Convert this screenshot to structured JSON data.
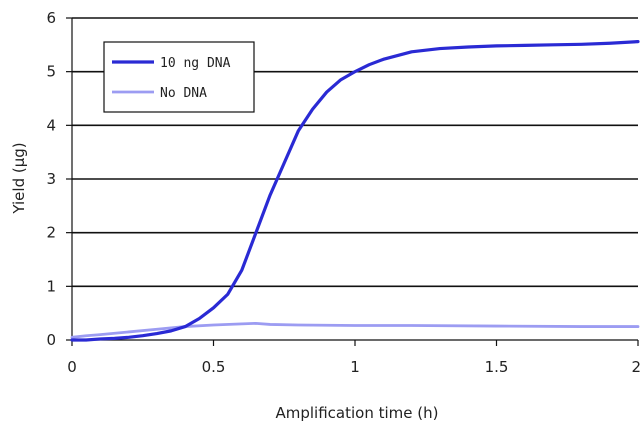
{
  "chart_data": {
    "type": "line",
    "title": "",
    "xlabel": "Amplification time (h)",
    "ylabel": "Yield (µg)",
    "xlim": [
      0,
      2
    ],
    "ylim": [
      0,
      6
    ],
    "x_ticks": [
      "0",
      "0.5",
      "1",
      "1.5",
      "2"
    ],
    "y_ticks": [
      "0",
      "1",
      "2",
      "3",
      "4",
      "5",
      "6"
    ],
    "grid": "horizontal",
    "legend_position": "top-left",
    "series": [
      {
        "name": "10 ng DNA",
        "color": "#2a2ad4",
        "points": [
          [
            0,
            0.0
          ],
          [
            0.05,
            0.0
          ],
          [
            0.1,
            0.02
          ],
          [
            0.15,
            0.03
          ],
          [
            0.2,
            0.05
          ],
          [
            0.25,
            0.08
          ],
          [
            0.3,
            0.12
          ],
          [
            0.35,
            0.17
          ],
          [
            0.4,
            0.25
          ],
          [
            0.45,
            0.4
          ],
          [
            0.5,
            0.6
          ],
          [
            0.55,
            0.85
          ],
          [
            0.6,
            1.3
          ],
          [
            0.65,
            2.0
          ],
          [
            0.7,
            2.7
          ],
          [
            0.75,
            3.3
          ],
          [
            0.8,
            3.9
          ],
          [
            0.85,
            4.3
          ],
          [
            0.9,
            4.62
          ],
          [
            0.95,
            4.85
          ],
          [
            1.0,
            5.0
          ],
          [
            1.05,
            5.13
          ],
          [
            1.1,
            5.23
          ],
          [
            1.2,
            5.37
          ],
          [
            1.3,
            5.43
          ],
          [
            1.4,
            5.46
          ],
          [
            1.5,
            5.48
          ],
          [
            1.6,
            5.49
          ],
          [
            1.7,
            5.5
          ],
          [
            1.8,
            5.51
          ],
          [
            1.9,
            5.53
          ],
          [
            2.0,
            5.56
          ]
        ]
      },
      {
        "name": "No DNA",
        "color": "#9c9cf2",
        "points": [
          [
            0,
            0.05
          ],
          [
            0.05,
            0.08
          ],
          [
            0.1,
            0.1
          ],
          [
            0.2,
            0.15
          ],
          [
            0.3,
            0.2
          ],
          [
            0.4,
            0.25
          ],
          [
            0.5,
            0.28
          ],
          [
            0.6,
            0.3
          ],
          [
            0.65,
            0.31
          ],
          [
            0.7,
            0.29
          ],
          [
            0.8,
            0.28
          ],
          [
            1.0,
            0.27
          ],
          [
            1.2,
            0.27
          ],
          [
            1.5,
            0.26
          ],
          [
            1.8,
            0.25
          ],
          [
            2.0,
            0.25
          ]
        ]
      }
    ]
  }
}
